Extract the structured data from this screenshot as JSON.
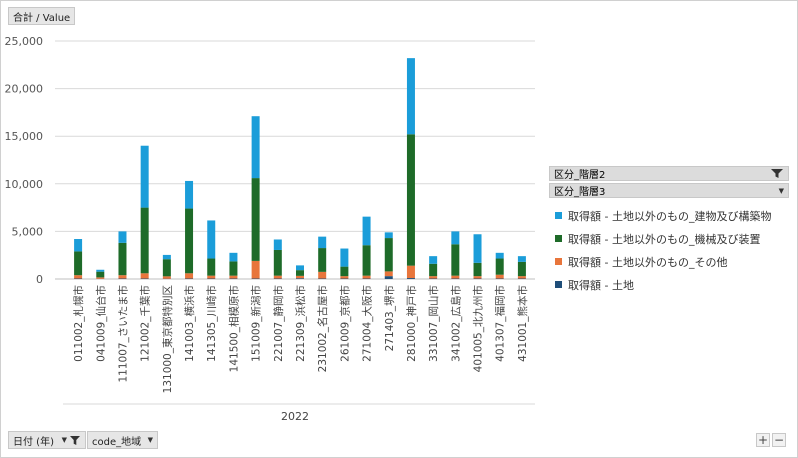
{
  "value_field": "合計 / Value",
  "year_label": "2022",
  "filters": {
    "date_field": "日付 (年)",
    "code_field": "code_地域"
  },
  "legend": {
    "header1": "区分_階層2",
    "header2": "区分_階層3",
    "items": [
      {
        "label": "取得額 - 土地以外のもの_建物及び構築物",
        "color": "#1b9dd9"
      },
      {
        "label": "取得額 - 土地以外のもの_機械及び装置",
        "color": "#1e6b29"
      },
      {
        "label": "取得額 - 土地以外のもの_その他",
        "color": "#e8753b"
      },
      {
        "label": "取得額 - 土地",
        "color": "#1f4e79"
      }
    ]
  },
  "zoom": {
    "plus": "+",
    "minus": "−"
  },
  "chart_data": {
    "type": "bar",
    "stacked": true,
    "y_ticks": [
      "0",
      "5,000",
      "10,000",
      "15,000",
      "20,000",
      "25,000"
    ],
    "ylim": [
      0,
      25000
    ],
    "grid": true,
    "legend_position": "right",
    "categories": [
      "011002_札幌市",
      "041009_仙台市",
      "111007_さいたま市",
      "121002_千葉市",
      "131000_東京都特別区",
      "141003_横浜市",
      "141305_川崎市",
      "141500_相模原市",
      "151009_新潟市",
      "221007_静岡市",
      "221309_浜松市",
      "231002_名古屋市",
      "261009_京都市",
      "271004_大阪市",
      "271403_堺市",
      "281000_神戸市",
      "331007_岡山市",
      "341002_広島市",
      "401005_北九州市",
      "401307_福岡市",
      "431001_熊本市"
    ],
    "series": [
      {
        "name": "取得額 - 土地",
        "color": "#1f4e79",
        "values": [
          50,
          20,
          50,
          50,
          30,
          50,
          50,
          50,
          50,
          50,
          80,
          50,
          50,
          50,
          300,
          100,
          50,
          50,
          50,
          50,
          50
        ]
      },
      {
        "name": "取得額 - 土地以外のもの_その他",
        "color": "#e8753b",
        "values": [
          350,
          150,
          350,
          550,
          250,
          550,
          300,
          300,
          1850,
          300,
          250,
          700,
          250,
          300,
          500,
          1300,
          250,
          300,
          250,
          400,
          250
        ]
      },
      {
        "name": "取得額 - 土地以外のもの_機械及び装置",
        "color": "#1e6b29",
        "values": [
          2500,
          600,
          3400,
          6900,
          1800,
          6800,
          1800,
          1500,
          8700,
          2700,
          600,
          2500,
          1000,
          3200,
          3500,
          13800,
          1300,
          3300,
          1400,
          1700,
          1500
        ]
      },
      {
        "name": "取得額 - 土地以外のもの_建物及び構築物",
        "color": "#1b9dd9",
        "values": [
          1300,
          200,
          1200,
          6500,
          450,
          2900,
          4000,
          900,
          6500,
          1100,
          500,
          1200,
          1900,
          3000,
          600,
          8000,
          800,
          1350,
          3000,
          600,
          600
        ]
      }
    ]
  }
}
